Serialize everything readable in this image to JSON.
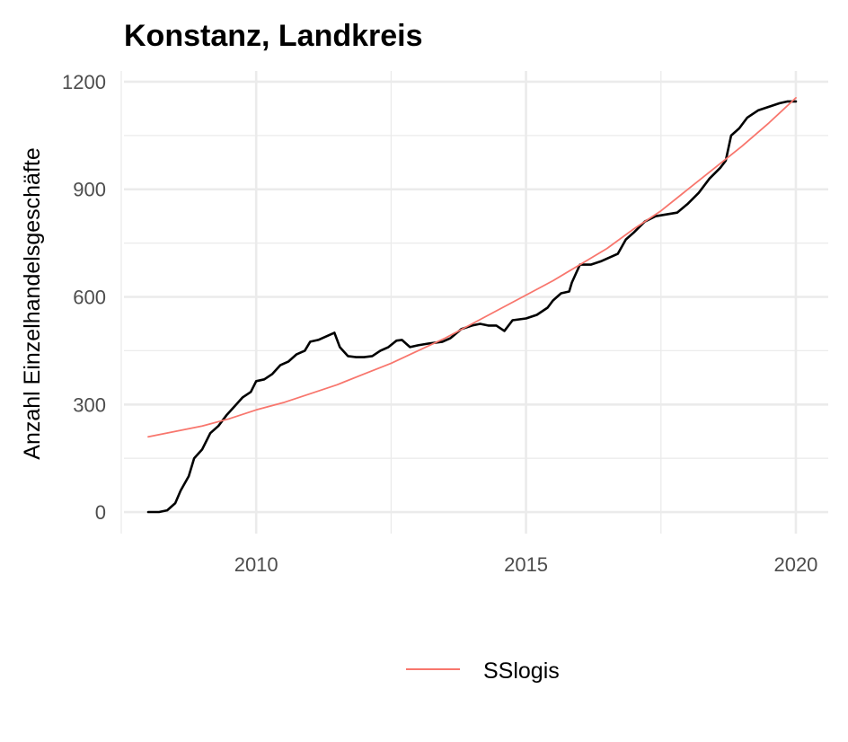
{
  "chart_data": {
    "type": "line",
    "title": "Konstanz, Landkreis",
    "xlabel": "",
    "ylabel": "Anzahl Einzelhandelsgeschäfte",
    "xlim": [
      2007.55,
      2020.6
    ],
    "ylim": [
      -60,
      1230
    ],
    "x_ticks": [
      2010,
      2015,
      2020
    ],
    "x_tick_labels": [
      "2010",
      "2015",
      "2020"
    ],
    "y_ticks": [
      0,
      300,
      600,
      900,
      1200
    ],
    "y_tick_labels": [
      "0",
      "300",
      "600",
      "900",
      "1200"
    ],
    "grid": true,
    "legend_position": "bottom",
    "series": [
      {
        "color": "#000000",
        "x": [
          2008.0,
          2008.2,
          2008.35,
          2008.5,
          2008.6,
          2008.75,
          2008.85,
          2009.0,
          2009.15,
          2009.3,
          2009.45,
          2009.6,
          2009.75,
          2009.9,
          2010.0,
          2010.15,
          2010.3,
          2010.45,
          2010.6,
          2010.75,
          2010.9,
          2011.0,
          2011.15,
          2011.3,
          2011.45,
          2011.55,
          2011.7,
          2011.85,
          2012.0,
          2012.15,
          2012.3,
          2012.45,
          2012.6,
          2012.7,
          2012.85,
          2013.0,
          2013.2,
          2013.45,
          2013.6,
          2013.8,
          2014.0,
          2014.15,
          2014.3,
          2014.45,
          2014.6,
          2014.75,
          2015.0,
          2015.2,
          2015.4,
          2015.5,
          2015.65,
          2015.8,
          2015.85,
          2016.0,
          2016.2,
          2016.4,
          2016.55,
          2016.7,
          2016.85,
          2017.0,
          2017.2,
          2017.4,
          2017.6,
          2017.8,
          2018.0,
          2018.2,
          2018.4,
          2018.6,
          2018.7,
          2018.8,
          2018.95,
          2019.1,
          2019.3,
          2019.5,
          2019.7,
          2019.85,
          2020.0
        ],
        "values": [
          0,
          0,
          5,
          25,
          60,
          100,
          150,
          175,
          220,
          240,
          270,
          295,
          320,
          335,
          365,
          370,
          385,
          410,
          420,
          440,
          450,
          475,
          480,
          490,
          500,
          460,
          435,
          432,
          432,
          435,
          450,
          460,
          478,
          480,
          460,
          465,
          470,
          475,
          485,
          510,
          520,
          525,
          520,
          520,
          505,
          535,
          540,
          550,
          570,
          590,
          610,
          615,
          640,
          690,
          690,
          700,
          710,
          720,
          760,
          780,
          810,
          825,
          830,
          835,
          860,
          890,
          930,
          960,
          980,
          1050,
          1070,
          1100,
          1120,
          1130,
          1140,
          1145,
          1145
        ]
      },
      {
        "name": "SSlogis",
        "color": "#f8766d",
        "x": [
          2008.0,
          2008.5,
          2009.0,
          2009.5,
          2010.0,
          2010.5,
          2011.0,
          2011.5,
          2012.0,
          2012.5,
          2013.0,
          2013.5,
          2014.0,
          2014.5,
          2015.0,
          2015.5,
          2016.0,
          2016.5,
          2017.0,
          2017.5,
          2018.0,
          2018.5,
          2019.0,
          2019.5,
          2020.0
        ],
        "values": [
          210,
          225,
          240,
          260,
          285,
          305,
          330,
          355,
          385,
          415,
          450,
          485,
          525,
          565,
          605,
          645,
          690,
          735,
          790,
          840,
          900,
          960,
          1020,
          1085,
          1155
        ]
      }
    ]
  }
}
